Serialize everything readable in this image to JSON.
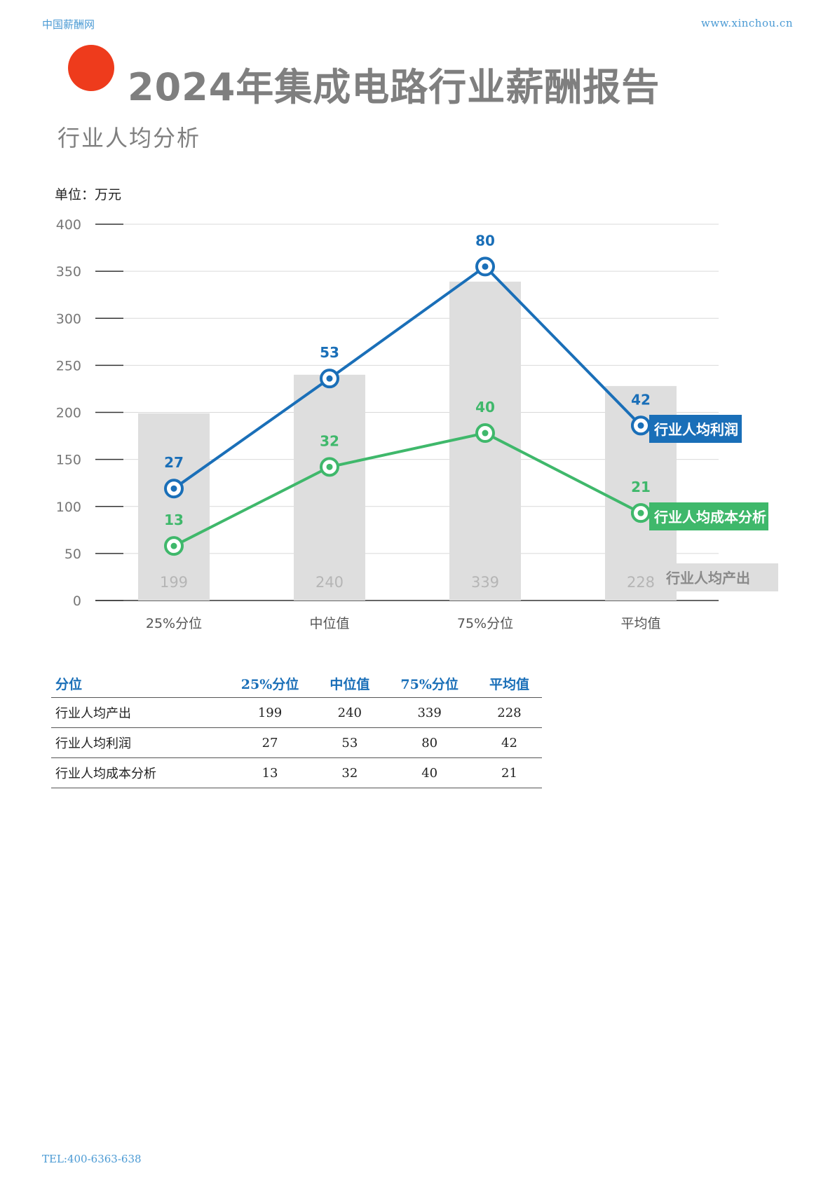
{
  "header": {
    "brand": "中国薪酬网",
    "url": "www.xinchou.cn",
    "title": "2024年集成电路行业薪酬报告",
    "subtitle": "行业人均分析",
    "unit": "单位：万元"
  },
  "colors": {
    "accent_dot": "#ee3b1c",
    "profit": "#1a6fb8",
    "cost": "#3fb86b",
    "bar": "#dedede"
  },
  "chart_data": {
    "type": "bar",
    "categories": [
      "25%分位",
      "中位值",
      "75%分位",
      "平均值"
    ],
    "ylim": [
      0,
      400
    ],
    "yticks": [
      0,
      50,
      100,
      150,
      200,
      250,
      300,
      350,
      400
    ],
    "grid": true,
    "series": [
      {
        "name": "行业人均产出",
        "type": "bar",
        "values": [
          199,
          240,
          339,
          228
        ]
      },
      {
        "name": "行业人均利润",
        "type": "line",
        "values": [
          27,
          53,
          80,
          42
        ],
        "plot_y": [
          119,
          236,
          355,
          186
        ]
      },
      {
        "name": "行业人均成本分析",
        "type": "line",
        "values": [
          13,
          32,
          40,
          21
        ],
        "plot_y": [
          58,
          142,
          178,
          93
        ]
      }
    ]
  },
  "table": {
    "headers": [
      "分位",
      "25%分位",
      "中位值",
      "75%分位",
      "平均值"
    ],
    "rows": [
      {
        "label": "行业人均产出",
        "cells": [
          "199",
          "240",
          "339",
          "228"
        ]
      },
      {
        "label": "行业人均利润",
        "cells": [
          "27",
          "53",
          "80",
          "42"
        ]
      },
      {
        "label": "行业人均成本分析",
        "cells": [
          "13",
          "32",
          "40",
          "21"
        ]
      }
    ]
  },
  "footer": {
    "tel": "TEL:400-6363-638"
  }
}
